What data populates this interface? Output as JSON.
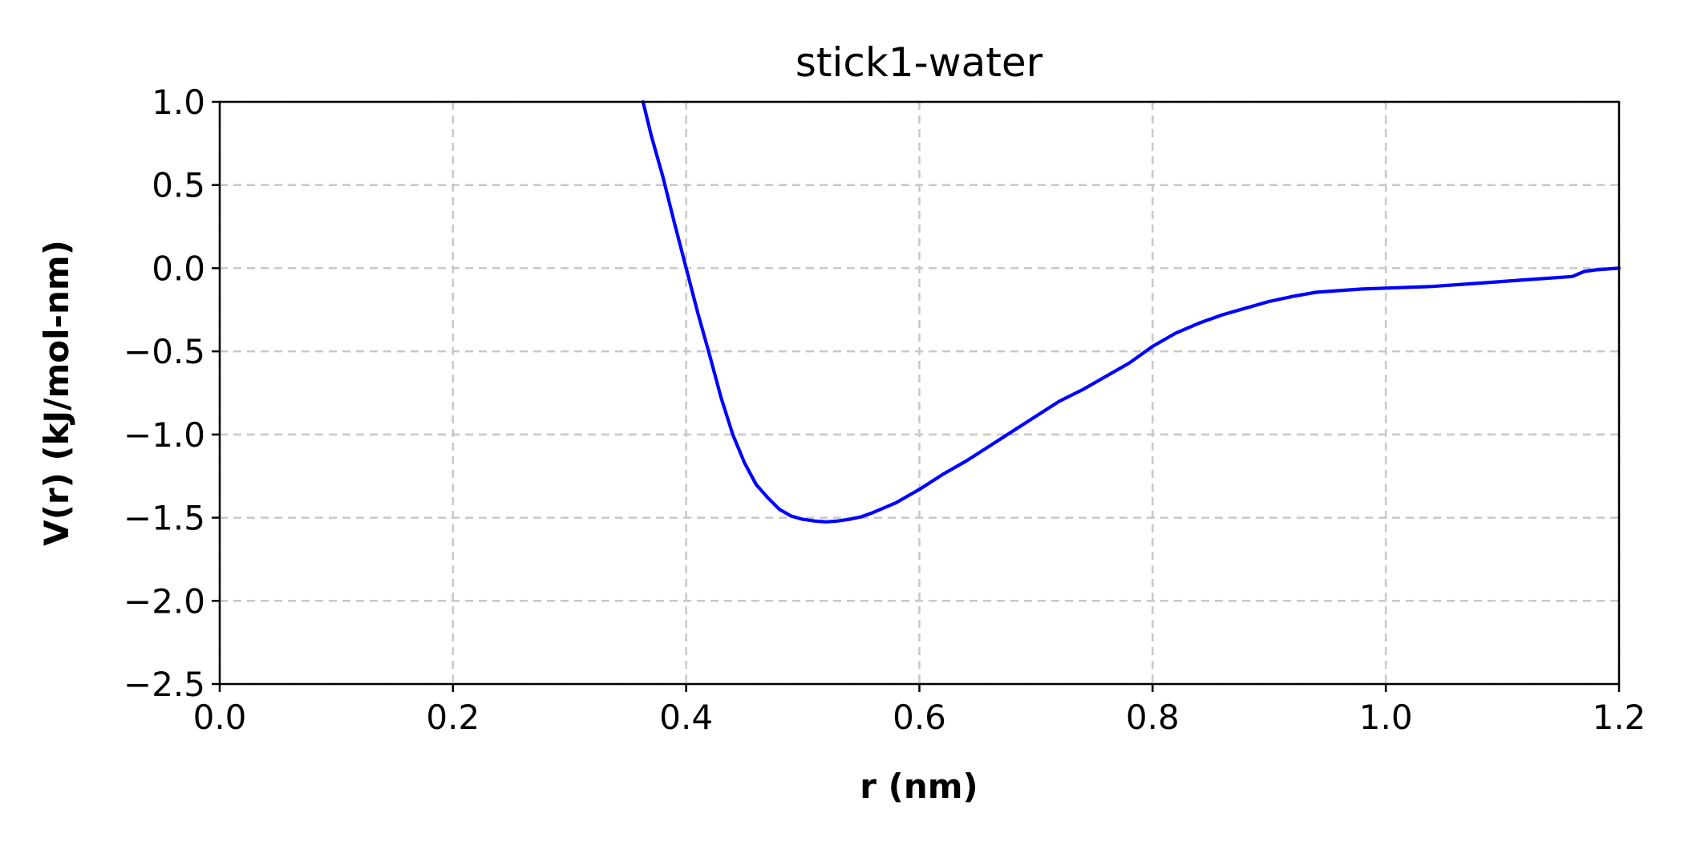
{
  "chart_data": {
    "type": "line",
    "title": "stick1-water",
    "xlabel": "r (nm)",
    "ylabel": "V(r)  (kJ/mol-nm)",
    "xlim": [
      0.0,
      1.2
    ],
    "ylim": [
      -2.5,
      1.0
    ],
    "xticks": [
      "0.0",
      "0.2",
      "0.4",
      "0.6",
      "0.8",
      "1.0",
      "1.2"
    ],
    "yticks": [
      "1.0",
      "0.5",
      "0.0",
      "−0.5",
      "−1.0",
      "−1.5",
      "−2.0",
      "−2.5"
    ],
    "grid": true,
    "series": [
      {
        "color": "#0000ff",
        "x": [
          0.363,
          0.37,
          0.38,
          0.39,
          0.4,
          0.41,
          0.42,
          0.43,
          0.44,
          0.45,
          0.46,
          0.47,
          0.48,
          0.49,
          0.5,
          0.51,
          0.52,
          0.53,
          0.54,
          0.55,
          0.56,
          0.57,
          0.58,
          0.59,
          0.6,
          0.62,
          0.64,
          0.66,
          0.68,
          0.7,
          0.72,
          0.74,
          0.76,
          0.78,
          0.8,
          0.82,
          0.84,
          0.86,
          0.88,
          0.9,
          0.92,
          0.94,
          0.96,
          0.98,
          1.0,
          1.04,
          1.08,
          1.12,
          1.16,
          1.17,
          1.18,
          1.2
        ],
        "y": [
          1.0,
          0.8,
          0.55,
          0.27,
          0.0,
          -0.27,
          -0.52,
          -0.78,
          -1.0,
          -1.17,
          -1.3,
          -1.38,
          -1.45,
          -1.49,
          -1.51,
          -1.52,
          -1.525,
          -1.52,
          -1.51,
          -1.495,
          -1.47,
          -1.44,
          -1.41,
          -1.37,
          -1.33,
          -1.24,
          -1.16,
          -1.07,
          -0.98,
          -0.89,
          -0.8,
          -0.73,
          -0.65,
          -0.57,
          -0.47,
          -0.39,
          -0.33,
          -0.28,
          -0.24,
          -0.2,
          -0.17,
          -0.145,
          -0.135,
          -0.125,
          -0.12,
          -0.11,
          -0.09,
          -0.07,
          -0.05,
          -0.02,
          -0.01,
          0.0
        ]
      }
    ]
  }
}
